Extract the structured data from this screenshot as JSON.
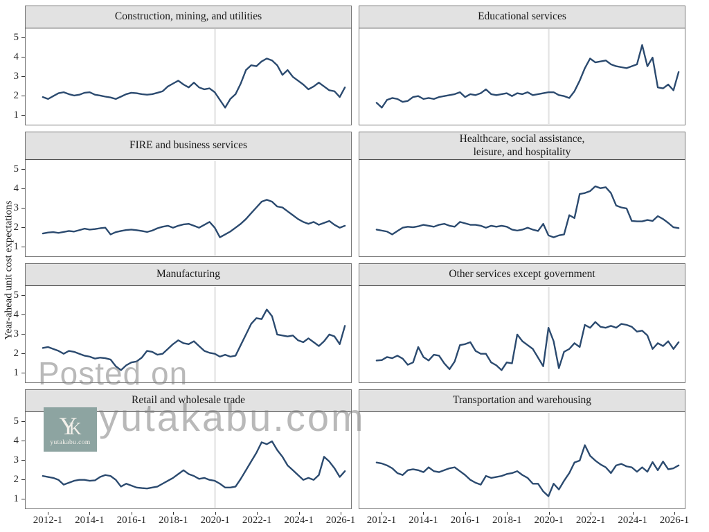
{
  "y_axis_label": "Year-ahead unit cost expectations",
  "watermark": {
    "line1": "Posted on",
    "line2": "yutakabu.com",
    "logo_y": "Y",
    "logo_k": "K",
    "logo_caption": "yutakabu.com"
  },
  "colors": {
    "line": "#2b4a6f",
    "strip_bg": "#e2e2e2",
    "panel_border": "#757575",
    "ref_line": "#e3e3e3",
    "tick": "#333333",
    "watermark_gray": "#b3b3b3",
    "logo_bg": "#8da4a1"
  },
  "axes": {
    "y_tick_labels": [
      "5",
      "4",
      "3",
      "2",
      "1"
    ],
    "x_tick_labels": [
      "2012-1",
      "2014-1",
      "2016-1",
      "2018-1",
      "2020-1",
      "2022-1",
      "2024-1",
      "2026-1"
    ]
  },
  "chart_data": [
    {
      "type": "line",
      "title": "Construction, mining, and utilities",
      "frequency": "quarterly",
      "x_start": "2011-Q4",
      "x_end": "2026-Q2",
      "ylim": [
        1,
        5
      ],
      "ref_line_at": "2020-1",
      "grid": false,
      "legend": false,
      "values": [
        1.9,
        1.8,
        1.95,
        2.1,
        2.15,
        2.05,
        1.98,
        2.02,
        2.12,
        2.15,
        2.02,
        1.98,
        1.92,
        1.88,
        1.8,
        1.92,
        2.05,
        2.12,
        2.1,
        2.05,
        2.02,
        2.05,
        2.12,
        2.2,
        2.45,
        2.6,
        2.75,
        2.55,
        2.4,
        2.65,
        2.4,
        2.3,
        2.35,
        2.15,
        1.75,
        1.35,
        1.8,
        2.05,
        2.6,
        3.3,
        3.55,
        3.5,
        3.75,
        3.9,
        3.8,
        3.55,
        3.05,
        3.3,
        2.95,
        2.75,
        2.55,
        2.3,
        2.45,
        2.65,
        2.45,
        2.25,
        2.2,
        1.9,
        2.4
      ]
    },
    {
      "type": "line",
      "title": "Educational services",
      "frequency": "quarterly",
      "x_start": "2011-Q4",
      "x_end": "2026-Q2",
      "ylim": [
        1,
        5
      ],
      "ref_line_at": "2020-1",
      "grid": false,
      "legend": false,
      "values": [
        1.6,
        1.35,
        1.75,
        1.85,
        1.8,
        1.65,
        1.7,
        1.9,
        1.95,
        1.8,
        1.85,
        1.8,
        1.9,
        1.95,
        2.0,
        2.05,
        2.15,
        1.9,
        2.05,
        2.0,
        2.1,
        2.3,
        2.05,
        2.0,
        2.05,
        2.1,
        1.95,
        2.1,
        2.05,
        2.15,
        2.0,
        2.05,
        2.1,
        2.15,
        2.15,
        2.0,
        1.95,
        1.85,
        2.2,
        2.75,
        3.4,
        3.9,
        3.7,
        3.75,
        3.8,
        3.6,
        3.5,
        3.45,
        3.4,
        3.5,
        3.6,
        4.6,
        3.5,
        3.95,
        2.4,
        2.35,
        2.55,
        2.25,
        3.2
      ]
    },
    {
      "type": "line",
      "title": "FIRE and business services",
      "frequency": "quarterly",
      "x_start": "2011-Q4",
      "x_end": "2026-Q2",
      "ylim": [
        1,
        5
      ],
      "ref_line_at": "2020-1",
      "grid": false,
      "legend": false,
      "values": [
        1.65,
        1.7,
        1.72,
        1.68,
        1.73,
        1.78,
        1.75,
        1.82,
        1.9,
        1.85,
        1.88,
        1.92,
        1.95,
        1.6,
        1.72,
        1.78,
        1.83,
        1.85,
        1.82,
        1.78,
        1.73,
        1.8,
        1.92,
        2.0,
        2.05,
        1.95,
        2.05,
        2.12,
        2.15,
        2.05,
        1.95,
        2.1,
        2.25,
        1.95,
        1.45,
        1.6,
        1.75,
        1.95,
        2.15,
        2.4,
        2.7,
        3.0,
        3.3,
        3.4,
        3.3,
        3.05,
        3.0,
        2.8,
        2.6,
        2.4,
        2.25,
        2.15,
        2.25,
        2.1,
        2.2,
        2.3,
        2.1,
        1.95,
        2.05
      ]
    },
    {
      "type": "line",
      "title": "Healthcare, social assistance,\nleisure, and hospitality",
      "frequency": "quarterly",
      "x_start": "2011-Q4",
      "x_end": "2026-Q2",
      "ylim": [
        1,
        5
      ],
      "ref_line_at": "2020-1",
      "grid": false,
      "legend": false,
      "values": [
        1.85,
        1.8,
        1.75,
        1.6,
        1.78,
        1.95,
        2.0,
        1.97,
        2.02,
        2.1,
        2.05,
        2.0,
        2.1,
        2.15,
        2.05,
        2.0,
        2.25,
        2.18,
        2.1,
        2.1,
        2.05,
        1.95,
        2.05,
        2.0,
        2.05,
        2.0,
        1.85,
        1.8,
        1.85,
        1.95,
        1.85,
        1.78,
        2.15,
        1.55,
        1.45,
        1.55,
        1.6,
        2.6,
        2.45,
        3.7,
        3.75,
        3.85,
        4.1,
        4.0,
        4.05,
        3.75,
        3.1,
        3.0,
        2.95,
        2.3,
        2.28,
        2.28,
        2.35,
        2.3,
        2.55,
        2.4,
        2.2,
        1.97,
        1.93
      ]
    },
    {
      "type": "line",
      "title": "Manufacturing",
      "frequency": "quarterly",
      "x_start": "2011-Q4",
      "x_end": "2026-Q2",
      "ylim": [
        1,
        5
      ],
      "ref_line_at": "2020-1",
      "grid": false,
      "legend": false,
      "values": [
        2.25,
        2.3,
        2.2,
        2.1,
        1.95,
        2.1,
        2.05,
        1.95,
        1.85,
        1.8,
        1.7,
        1.75,
        1.72,
        1.65,
        1.3,
        1.1,
        1.35,
        1.5,
        1.55,
        1.75,
        2.1,
        2.05,
        1.9,
        1.95,
        2.2,
        2.45,
        2.65,
        2.5,
        2.45,
        2.6,
        2.35,
        2.1,
        2.0,
        1.95,
        1.8,
        1.9,
        1.8,
        1.85,
        2.4,
        2.95,
        3.5,
        3.8,
        3.75,
        4.25,
        3.9,
        2.95,
        2.9,
        2.85,
        2.9,
        2.65,
        2.55,
        2.75,
        2.55,
        2.35,
        2.6,
        2.95,
        2.85,
        2.45,
        3.4
      ]
    },
    {
      "type": "line",
      "title": "Other services except government",
      "frequency": "quarterly",
      "x_start": "2011-Q4",
      "x_end": "2026-Q2",
      "ylim": [
        1,
        5
      ],
      "ref_line_at": "2020-1",
      "grid": false,
      "legend": false,
      "values": [
        1.6,
        1.62,
        1.78,
        1.72,
        1.85,
        1.7,
        1.38,
        1.5,
        2.3,
        1.78,
        1.6,
        1.9,
        1.85,
        1.45,
        1.15,
        1.55,
        2.4,
        2.45,
        2.55,
        2.1,
        1.95,
        1.95,
        1.5,
        1.35,
        1.1,
        1.5,
        1.45,
        2.95,
        2.6,
        2.4,
        2.2,
        1.75,
        1.3,
        3.3,
        2.6,
        1.2,
        2.05,
        2.2,
        2.5,
        2.3,
        3.45,
        3.3,
        3.6,
        3.35,
        3.3,
        3.4,
        3.3,
        3.5,
        3.45,
        3.35,
        3.1,
        3.15,
        2.9,
        2.2,
        2.5,
        2.35,
        2.6,
        2.2,
        2.55
      ]
    },
    {
      "type": "line",
      "title": "Retail and wholesale trade",
      "frequency": "quarterly",
      "x_start": "2011-Q4",
      "x_end": "2026-Q2",
      "ylim": [
        1,
        5
      ],
      "ref_line_at": "2020-1",
      "grid": false,
      "legend": false,
      "values": [
        2.15,
        2.1,
        2.05,
        1.95,
        1.7,
        1.8,
        1.9,
        1.95,
        1.95,
        1.9,
        1.92,
        2.1,
        2.2,
        2.15,
        1.95,
        1.6,
        1.75,
        1.65,
        1.55,
        1.52,
        1.5,
        1.55,
        1.6,
        1.75,
        1.9,
        2.05,
        2.25,
        2.45,
        2.25,
        2.15,
        2.0,
        2.05,
        1.95,
        1.9,
        1.75,
        1.55,
        1.55,
        1.6,
        2.0,
        2.45,
        2.9,
        3.35,
        3.9,
        3.8,
        3.95,
        3.5,
        3.15,
        2.7,
        2.45,
        2.2,
        1.95,
        2.05,
        1.95,
        2.2,
        3.15,
        2.9,
        2.55,
        2.1,
        2.4
      ]
    },
    {
      "type": "line",
      "title": "Transportation and warehousing",
      "frequency": "quarterly",
      "x_start": "2011-Q4",
      "x_end": "2026-Q2",
      "ylim": [
        1,
        5
      ],
      "ref_line_at": "2020-1",
      "grid": false,
      "legend": false,
      "values": [
        2.85,
        2.8,
        2.7,
        2.55,
        2.3,
        2.2,
        2.45,
        2.5,
        2.45,
        2.35,
        2.6,
        2.4,
        2.35,
        2.45,
        2.55,
        2.6,
        2.4,
        2.2,
        1.95,
        1.8,
        1.7,
        2.15,
        2.05,
        2.1,
        2.15,
        2.25,
        2.3,
        2.4,
        2.2,
        2.05,
        1.75,
        1.75,
        1.35,
        1.1,
        1.75,
        1.45,
        1.9,
        2.3,
        2.85,
        2.95,
        3.75,
        3.2,
        2.95,
        2.75,
        2.6,
        2.3,
        2.7,
        2.78,
        2.65,
        2.6,
        2.37,
        2.6,
        2.37,
        2.87,
        2.45,
        2.9,
        2.5,
        2.55,
        2.7
      ]
    }
  ]
}
